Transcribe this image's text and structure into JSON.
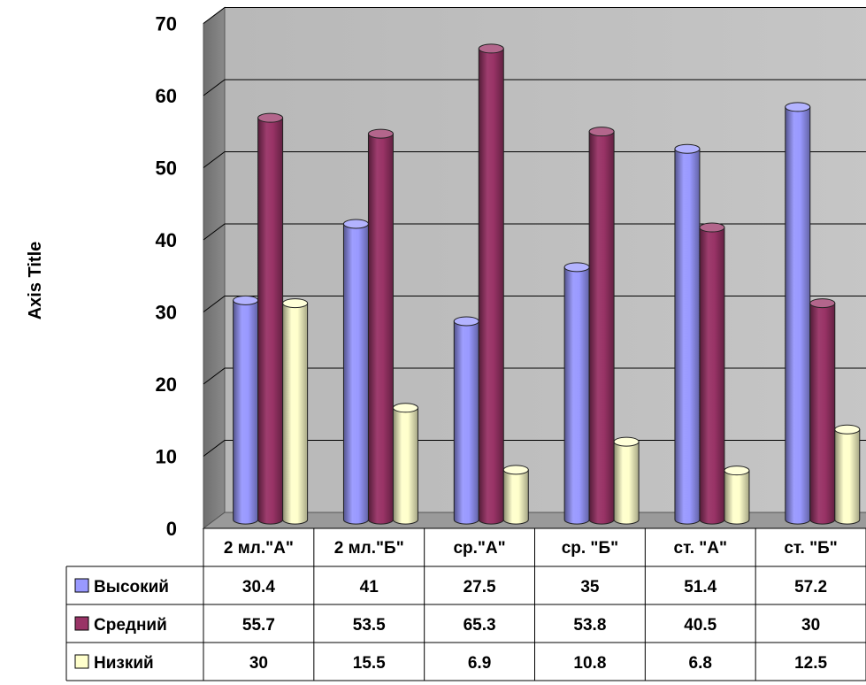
{
  "chart_data": {
    "type": "bar",
    "ylabel": "Axis Title",
    "ylim": [
      0,
      70
    ],
    "yticks": [
      "0",
      "10",
      "20",
      "30",
      "40",
      "50",
      "60",
      "70"
    ],
    "categories": [
      "2 мл.\"А\"",
      "2 мл.\"Б\"",
      "ср.\"А\"",
      "ср. \"Б\"",
      "ст. \"А\"",
      "ст. \"Б\""
    ],
    "series": [
      {
        "name": "Высокий",
        "color": "#9999FF",
        "values": [
          30.4,
          41,
          27.5,
          35,
          51.4,
          57.2
        ],
        "labels": [
          "30.4",
          "41",
          "27.5",
          "35",
          "51.4",
          "57.2"
        ]
      },
      {
        "name": "Средний",
        "color": "#993366",
        "values": [
          55.7,
          53.5,
          65.3,
          53.8,
          40.5,
          30
        ],
        "labels": [
          "55.7",
          "53.5",
          "65.3",
          "53.8",
          "40.5",
          "30"
        ]
      },
      {
        "name": "Низкий",
        "color": "#FFFFCC",
        "values": [
          30,
          15.5,
          6.9,
          10.8,
          6.8,
          12.5
        ],
        "labels": [
          "30",
          "15.5",
          "6.9",
          "10.8",
          "6.8",
          "12.5"
        ]
      }
    ],
    "grid": true,
    "legend": "data-table-left",
    "style": "3d-cylinder"
  }
}
